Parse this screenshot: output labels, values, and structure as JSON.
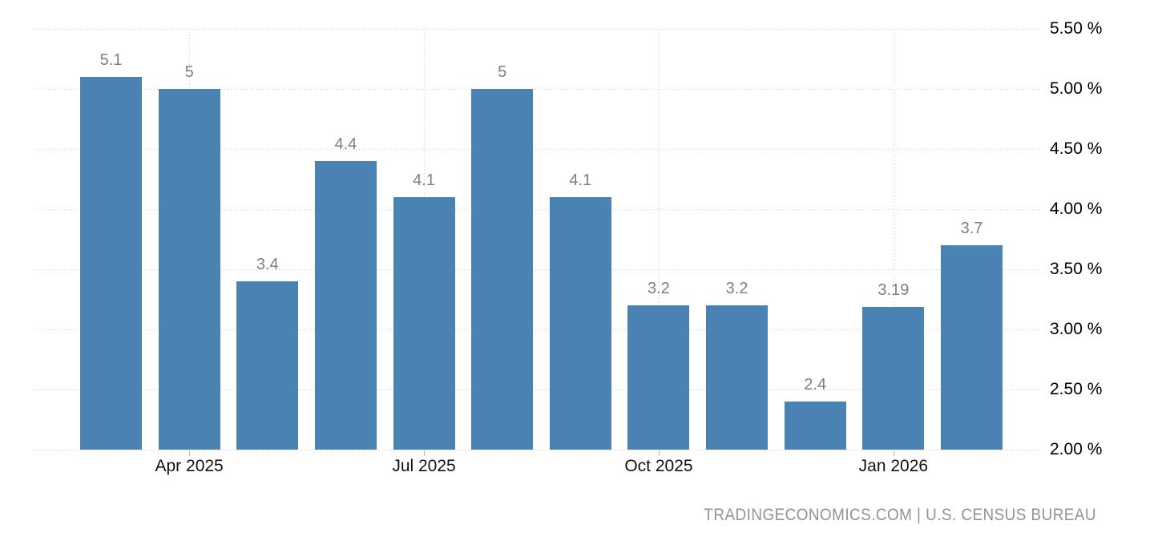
{
  "chart_data": {
    "type": "bar",
    "values": [
      5.1,
      5,
      3.4,
      4.4,
      4.1,
      5,
      4.1,
      3.2,
      3.2,
      2.4,
      3.19,
      3.7
    ],
    "value_labels": [
      "5.1",
      "5",
      "3.4",
      "4.4",
      "4.1",
      "5",
      "4.1",
      "3.2",
      "3.2",
      "2.4",
      "3.19",
      "3.7"
    ],
    "x_ticks": [
      {
        "index": 1,
        "label": "Apr 2025"
      },
      {
        "index": 4,
        "label": "Jul 2025"
      },
      {
        "index": 7,
        "label": "Oct 2025"
      },
      {
        "index": 10,
        "label": "Jan 2026"
      }
    ],
    "y_ticks": [
      "5.50 %",
      "5.00 %",
      "4.50 %",
      "4.00 %",
      "3.50 %",
      "3.00 %",
      "2.50 %",
      "2.00 %"
    ],
    "ylim": [
      2.0,
      5.5
    ],
    "y_step": 0.5,
    "grid": true,
    "legend": "none",
    "title": "",
    "xlabel": "",
    "ylabel": "",
    "bar_color": "#4a82b4",
    "value_label_color": "#7f7f7f",
    "axis_text_color": "#111111",
    "grid_color": "#cccccc"
  },
  "attribution": {
    "text": "TRADINGECONOMICS.COM | U.S. CENSUS BUREAU",
    "color": "#8e949a"
  }
}
